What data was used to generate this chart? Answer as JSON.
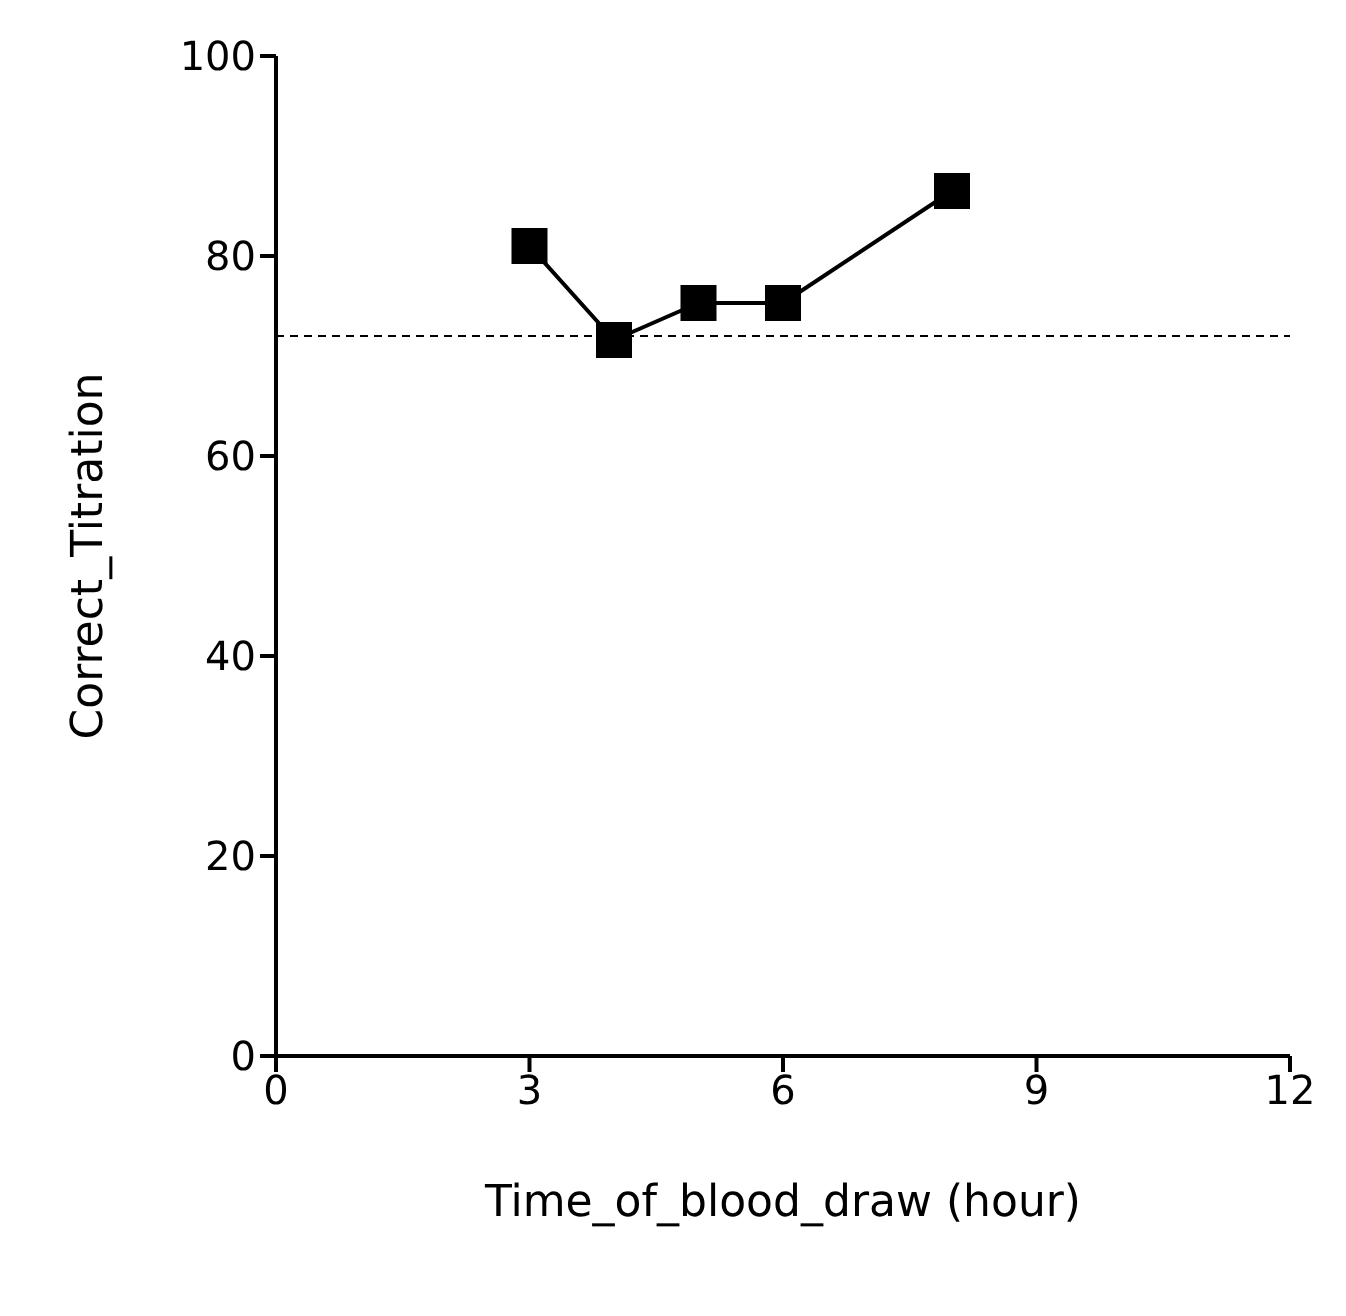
{
  "chart_data": {
    "type": "line",
    "xlabel": "Time_of_blood_draw (hour)",
    "ylabel": "Correct_Titration",
    "x": [
      3,
      4,
      5,
      6,
      8
    ],
    "series": [
      {
        "color": "#000000",
        "values": [
          81,
          71.6,
          75.3,
          75.3,
          86.5
        ]
      }
    ],
    "xlim": [
      0,
      12
    ],
    "xticks": [
      0,
      3,
      6,
      9,
      12
    ],
    "ylim": [
      0,
      100
    ],
    "yticks": [
      0,
      20,
      40,
      60,
      80,
      100
    ],
    "ref_lines": [
      {
        "axis": "y",
        "value": 72,
        "color": "#000000",
        "line_style": "dashed"
      }
    ],
    "grid": false,
    "legend": false,
    "marker": "square",
    "line_style": "solid"
  }
}
